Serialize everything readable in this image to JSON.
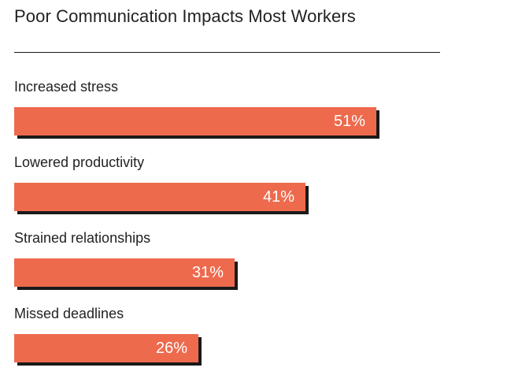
{
  "chart_data": {
    "type": "bar",
    "orientation": "horizontal",
    "title": "Poor Communication Impacts Most Workers",
    "categories": [
      "Increased stress",
      "Lowered productivity",
      "Strained relationships",
      "Missed deadlines"
    ],
    "values": [
      51,
      41,
      31,
      26
    ],
    "value_labels": [
      "51%",
      "41%",
      "31%",
      "26%"
    ],
    "unit": "%",
    "xlim": [
      0,
      60
    ],
    "grid": false,
    "legend": "none",
    "colors": {
      "bar": "#ee6a4d",
      "shadow": "#1a1a1a",
      "value_text": "#ffffff"
    }
  }
}
